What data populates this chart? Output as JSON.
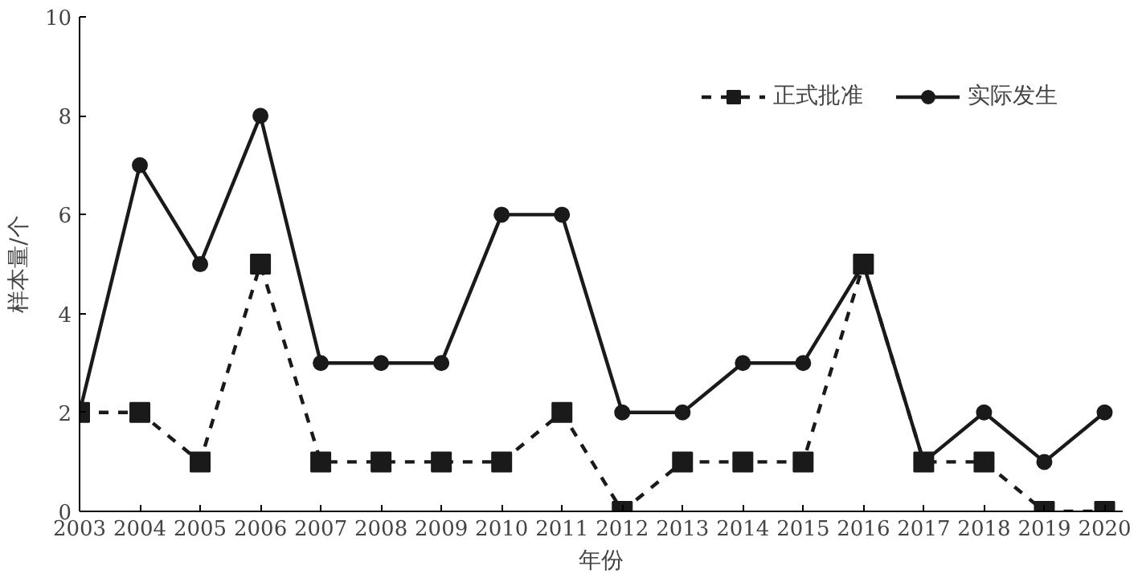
{
  "chart_data": {
    "type": "line",
    "xlabel": "年份",
    "ylabel": "样本量/个",
    "categories": [
      "2003",
      "2004",
      "2005",
      "2006",
      "2007",
      "2008",
      "2009",
      "2010",
      "2011",
      "2012",
      "2013",
      "2014",
      "2015",
      "2016",
      "2017",
      "2018",
      "2019",
      "2020"
    ],
    "series": [
      {
        "name": "正式批准",
        "color": "#1a1a1a",
        "marker": "square",
        "line_style": "dashed",
        "values": [
          2,
          2,
          1,
          5,
          1,
          1,
          1,
          1,
          2,
          0,
          1,
          1,
          1,
          5,
          1,
          1,
          0,
          0
        ]
      },
      {
        "name": "实际发生",
        "color": "#1a1a1a",
        "marker": "circle",
        "line_style": "solid",
        "values": [
          2,
          7,
          5,
          8,
          3,
          3,
          3,
          6,
          6,
          2,
          2,
          3,
          3,
          5,
          1,
          2,
          1,
          2
        ]
      }
    ],
    "ylim": [
      0,
      10
    ],
    "yticks": [
      0,
      2,
      4,
      6,
      8,
      10
    ],
    "grid": false,
    "legend": "top right"
  }
}
